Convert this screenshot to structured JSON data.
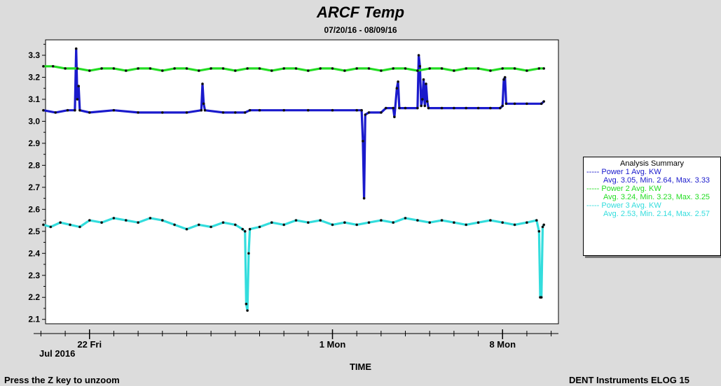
{
  "chart_data": {
    "type": "line",
    "title": "ARCF Temp",
    "subtitle": "07/20/16 - 08/09/16",
    "xlabel": "TIME",
    "x_month_label": "Jul 2016",
    "x_ticks": [
      {
        "label": "22 Fri",
        "day": 22
      },
      {
        "label": "1 Mon",
        "day": 32
      },
      {
        "label": "8 Mon",
        "day": 39
      }
    ],
    "xlim_days": [
      19.7,
      41.3
    ],
    "ylim": [
      2.08,
      3.37
    ],
    "y_ticks": [
      "2.1",
      "2.2",
      "2.3",
      "2.4",
      "2.5",
      "2.6",
      "2.7",
      "2.8",
      "2.9",
      "3.0",
      "3.1",
      "3.2",
      "3.3"
    ],
    "series": [
      {
        "name": "Power 1 Avg. KW",
        "color": "#1a1acc",
        "stats": "Avg. 3.05, Min. 2.64, Max. 3.33",
        "points": [
          [
            20.1,
            3.05
          ],
          [
            20.6,
            3.04
          ],
          [
            21.1,
            3.05
          ],
          [
            21.4,
            3.05
          ],
          [
            21.45,
            3.33
          ],
          [
            21.5,
            3.1
          ],
          [
            21.55,
            3.16
          ],
          [
            21.6,
            3.05
          ],
          [
            22.0,
            3.04
          ],
          [
            23.0,
            3.05
          ],
          [
            24.0,
            3.04
          ],
          [
            25.0,
            3.04
          ],
          [
            26.0,
            3.04
          ],
          [
            26.6,
            3.05
          ],
          [
            26.65,
            3.17
          ],
          [
            26.7,
            3.08
          ],
          [
            26.75,
            3.05
          ],
          [
            27.5,
            3.04
          ],
          [
            28.0,
            3.04
          ],
          [
            28.4,
            3.04
          ],
          [
            28.6,
            3.05
          ],
          [
            29.0,
            3.05
          ],
          [
            30.0,
            3.05
          ],
          [
            31.0,
            3.05
          ],
          [
            32.0,
            3.05
          ],
          [
            33.0,
            3.05
          ],
          [
            33.2,
            3.05
          ],
          [
            33.25,
            2.91
          ],
          [
            33.3,
            2.65
          ],
          [
            33.35,
            3.03
          ],
          [
            33.5,
            3.04
          ],
          [
            34.0,
            3.04
          ],
          [
            34.2,
            3.06
          ],
          [
            34.5,
            3.06
          ],
          [
            34.55,
            3.02
          ],
          [
            34.65,
            3.15
          ],
          [
            34.7,
            3.18
          ],
          [
            34.75,
            3.06
          ],
          [
            35.0,
            3.06
          ],
          [
            35.5,
            3.06
          ],
          [
            35.55,
            3.3
          ],
          [
            35.6,
            3.25
          ],
          [
            35.65,
            3.07
          ],
          [
            35.7,
            3.1
          ],
          [
            35.75,
            3.19
          ],
          [
            35.8,
            3.07
          ],
          [
            35.85,
            3.17
          ],
          [
            35.9,
            3.09
          ],
          [
            35.95,
            3.06
          ],
          [
            36.5,
            3.06
          ],
          [
            37.0,
            3.06
          ],
          [
            37.5,
            3.06
          ],
          [
            38.0,
            3.06
          ],
          [
            38.5,
            3.06
          ],
          [
            38.9,
            3.06
          ],
          [
            39.0,
            3.07
          ],
          [
            39.05,
            3.19
          ],
          [
            39.1,
            3.2
          ],
          [
            39.15,
            3.08
          ],
          [
            39.5,
            3.08
          ],
          [
            40.0,
            3.08
          ],
          [
            40.6,
            3.08
          ],
          [
            40.7,
            3.09
          ]
        ]
      },
      {
        "name": "Power 2 Avg. KW",
        "color": "#22dd22",
        "stats": "Avg. 3.24, Min. 3.23, Max. 3.25",
        "points": [
          [
            20.1,
            3.25
          ],
          [
            20.5,
            3.25
          ],
          [
            21.0,
            3.24
          ],
          [
            21.5,
            3.24
          ],
          [
            22.0,
            3.23
          ],
          [
            22.5,
            3.24
          ],
          [
            23.0,
            3.24
          ],
          [
            23.5,
            3.23
          ],
          [
            24.0,
            3.24
          ],
          [
            24.5,
            3.24
          ],
          [
            25.0,
            3.23
          ],
          [
            25.5,
            3.24
          ],
          [
            26.0,
            3.24
          ],
          [
            26.5,
            3.23
          ],
          [
            27.0,
            3.24
          ],
          [
            27.5,
            3.24
          ],
          [
            28.0,
            3.23
          ],
          [
            28.5,
            3.24
          ],
          [
            29.0,
            3.24
          ],
          [
            29.5,
            3.23
          ],
          [
            30.0,
            3.24
          ],
          [
            30.5,
            3.24
          ],
          [
            31.0,
            3.23
          ],
          [
            31.5,
            3.24
          ],
          [
            32.0,
            3.24
          ],
          [
            32.5,
            3.23
          ],
          [
            33.0,
            3.24
          ],
          [
            33.5,
            3.24
          ],
          [
            34.0,
            3.23
          ],
          [
            34.5,
            3.24
          ],
          [
            35.0,
            3.24
          ],
          [
            35.5,
            3.23
          ],
          [
            36.0,
            3.24
          ],
          [
            36.5,
            3.24
          ],
          [
            37.0,
            3.23
          ],
          [
            37.5,
            3.24
          ],
          [
            38.0,
            3.24
          ],
          [
            38.5,
            3.23
          ],
          [
            39.0,
            3.24
          ],
          [
            39.5,
            3.24
          ],
          [
            40.0,
            3.23
          ],
          [
            40.5,
            3.24
          ],
          [
            40.7,
            3.24
          ]
        ]
      },
      {
        "name": "Power 3 Avg. KW",
        "color": "#33dddd",
        "stats": "Avg. 2.53, Min. 2.14, Max. 2.57",
        "points": [
          [
            20.1,
            2.53
          ],
          [
            20.4,
            2.52
          ],
          [
            20.8,
            2.54
          ],
          [
            21.2,
            2.53
          ],
          [
            21.6,
            2.52
          ],
          [
            22.0,
            2.55
          ],
          [
            22.5,
            2.54
          ],
          [
            23.0,
            2.56
          ],
          [
            23.5,
            2.55
          ],
          [
            24.0,
            2.54
          ],
          [
            24.5,
            2.56
          ],
          [
            25.0,
            2.55
          ],
          [
            25.5,
            2.53
          ],
          [
            26.0,
            2.51
          ],
          [
            26.5,
            2.53
          ],
          [
            27.0,
            2.52
          ],
          [
            27.5,
            2.54
          ],
          [
            28.0,
            2.53
          ],
          [
            28.3,
            2.51
          ],
          [
            28.4,
            2.5
          ],
          [
            28.45,
            2.17
          ],
          [
            28.5,
            2.14
          ],
          [
            28.55,
            2.4
          ],
          [
            28.6,
            2.51
          ],
          [
            29.0,
            2.52
          ],
          [
            29.5,
            2.54
          ],
          [
            30.0,
            2.53
          ],
          [
            30.5,
            2.55
          ],
          [
            31.0,
            2.54
          ],
          [
            31.5,
            2.55
          ],
          [
            32.0,
            2.53
          ],
          [
            32.5,
            2.54
          ],
          [
            33.0,
            2.53
          ],
          [
            33.5,
            2.54
          ],
          [
            34.0,
            2.55
          ],
          [
            34.5,
            2.54
          ],
          [
            35.0,
            2.56
          ],
          [
            35.5,
            2.55
          ],
          [
            36.0,
            2.54
          ],
          [
            36.5,
            2.55
          ],
          [
            37.0,
            2.54
          ],
          [
            37.5,
            2.53
          ],
          [
            38.0,
            2.54
          ],
          [
            38.5,
            2.55
          ],
          [
            39.0,
            2.54
          ],
          [
            39.5,
            2.53
          ],
          [
            40.0,
            2.54
          ],
          [
            40.4,
            2.55
          ],
          [
            40.5,
            2.5
          ],
          [
            40.55,
            2.2
          ],
          [
            40.6,
            2.2
          ],
          [
            40.65,
            2.52
          ],
          [
            40.7,
            2.53
          ]
        ]
      }
    ],
    "legend": {
      "title": "Analysis Summary",
      "placement": "right"
    }
  },
  "footer": {
    "zoom_hint": "Press the Z key to unzoom",
    "brand": "DENT Instruments ELOG 15"
  }
}
